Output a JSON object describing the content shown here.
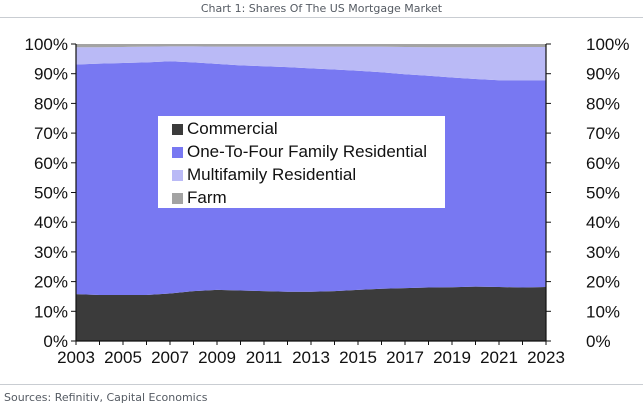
{
  "title": "Chart 1: Shares Of The US Mortgage Market",
  "source": "Sources: Refinitiv, Capital Economics",
  "chart_data": {
    "type": "area",
    "stacked": true,
    "title": "Chart 1: Shares Of The US Mortgage Market",
    "xlabel": "",
    "ylabel": "",
    "x": [
      2003,
      2004,
      2005,
      2006,
      2007,
      2008,
      2009,
      2010,
      2011,
      2012,
      2013,
      2014,
      2015,
      2016,
      2017,
      2018,
      2019,
      2020,
      2021,
      2022,
      2023
    ],
    "xticks": [
      2003,
      2005,
      2007,
      2009,
      2011,
      2013,
      2015,
      2017,
      2019,
      2021,
      2023
    ],
    "xlim": [
      2003,
      2023
    ],
    "ylim": [
      0,
      100
    ],
    "yticks": [
      0,
      10,
      20,
      30,
      40,
      50,
      60,
      70,
      80,
      90,
      100
    ],
    "ytick_labels": [
      "0%",
      "10%",
      "20%",
      "30%",
      "40%",
      "50%",
      "60%",
      "70%",
      "80%",
      "90%",
      "100%"
    ],
    "grid": false,
    "legend_position": "center-left",
    "series": [
      {
        "name": "Commercial",
        "color": "#3b3b3b",
        "values": [
          15.8,
          15.5,
          15.5,
          15.5,
          16.0,
          16.8,
          17.2,
          17.0,
          16.8,
          16.6,
          16.6,
          16.8,
          17.2,
          17.6,
          17.8,
          18.0,
          18.1,
          18.3,
          18.2,
          18.0,
          18.2
        ]
      },
      {
        "name": "One-To-Four Family Residential",
        "color": "#7878f2",
        "values": [
          77.3,
          77.9,
          78.1,
          78.3,
          78.2,
          77.0,
          76.1,
          75.8,
          75.7,
          75.6,
          75.2,
          74.6,
          73.8,
          72.9,
          72.0,
          71.3,
          70.6,
          69.9,
          69.6,
          69.8,
          69.6
        ]
      },
      {
        "name": "Multifamily Residential",
        "color": "#babaf6",
        "values": [
          5.8,
          5.5,
          5.4,
          5.3,
          5.0,
          5.4,
          5.8,
          6.3,
          6.6,
          6.9,
          7.3,
          7.7,
          8.1,
          8.6,
          9.2,
          9.6,
          10.2,
          10.7,
          11.1,
          11.2,
          11.2
        ]
      },
      {
        "name": "Farm",
        "color": "#a3a3a3",
        "values": [
          1.1,
          1.1,
          1.0,
          0.9,
          0.8,
          0.8,
          0.9,
          0.9,
          0.9,
          0.9,
          0.9,
          0.9,
          0.9,
          0.9,
          1.0,
          1.1,
          1.1,
          1.1,
          1.1,
          1.0,
          1.0
        ]
      }
    ]
  }
}
